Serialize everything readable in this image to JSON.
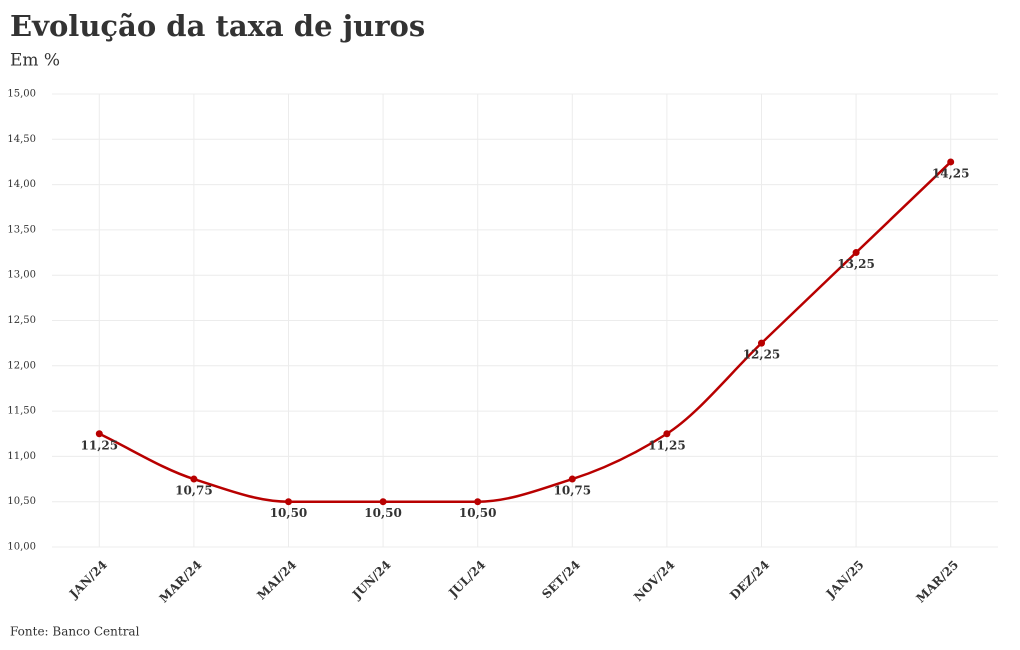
{
  "chart_data": {
    "type": "line",
    "title": "Evolução da taxa de juros",
    "subtitle": "Em %",
    "source": "Fonte: Banco Central",
    "categories": [
      "JAN/24",
      "MAR/24",
      "MAI/24",
      "JUN/24",
      "JUL/24",
      "SET/24",
      "NOV/24",
      "DEZ/24",
      "JAN/25",
      "MAR/25"
    ],
    "values": [
      11.25,
      10.75,
      10.5,
      10.5,
      10.5,
      10.75,
      11.25,
      12.25,
      13.25,
      14.25
    ],
    "value_labels": [
      "11,25",
      "10,75",
      "10,50",
      "10,50",
      "10,50",
      "10,75",
      "11,25",
      "12,25",
      "13,25",
      "14,25"
    ],
    "color": "#b80000",
    "ylim": [
      10,
      15
    ],
    "yticks": [
      {
        "value": 10,
        "label": "10,00"
      },
      {
        "value": 10.5,
        "label": "10,50"
      },
      {
        "value": 11,
        "label": "11,00"
      },
      {
        "value": 11.5,
        "label": "11,50"
      },
      {
        "value": 12,
        "label": "12,00"
      },
      {
        "value": 12.5,
        "label": "12,50"
      },
      {
        "value": 13,
        "label": "13,00"
      },
      {
        "value": 13.5,
        "label": "13,50"
      },
      {
        "value": 14,
        "label": "14,00"
      },
      {
        "value": 14.5,
        "label": "14,50"
      },
      {
        "value": 15,
        "label": "15,00"
      }
    ],
    "grid": true
  }
}
